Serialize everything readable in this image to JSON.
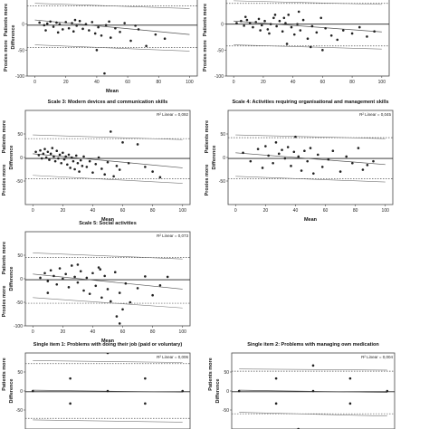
{
  "chart_data": [
    {
      "type": "scatter",
      "title": "",
      "r2_label": "",
      "xlabel": "Mean",
      "ylabel": "Difference",
      "y_pos_label": "Patients more",
      "y_neg_label": "Proxies more",
      "xlim": [
        -5,
        105
      ],
      "ylim": [
        -100,
        50
      ],
      "x_ticks": [
        0,
        20,
        40,
        60,
        80,
        100
      ],
      "y_ticks": [
        -100,
        -50,
        0
      ],
      "mean_line": -2,
      "limits": [
        35,
        -45
      ],
      "ci_upper": [
        [
          0,
          40
        ],
        [
          100,
          30
        ]
      ],
      "ci_lower": [
        [
          0,
          -40
        ],
        [
          100,
          -52
        ]
      ],
      "regression": [
        [
          0,
          8
        ],
        [
          100,
          -20
        ]
      ],
      "points": [
        [
          3,
          3
        ],
        [
          6,
          -2
        ],
        [
          8,
          1
        ],
        [
          10,
          5
        ],
        [
          12,
          -5
        ],
        [
          14,
          3
        ],
        [
          16,
          0
        ],
        [
          18,
          -10
        ],
        [
          20,
          4
        ],
        [
          22,
          -8
        ],
        [
          24,
          2
        ],
        [
          25,
          -14
        ],
        [
          27,
          -3
        ],
        [
          29,
          6
        ],
        [
          31,
          -9
        ],
        [
          33,
          0
        ],
        [
          35,
          -12
        ],
        [
          37,
          4
        ],
        [
          39,
          -18
        ],
        [
          41,
          -6
        ],
        [
          43,
          -22
        ],
        [
          46,
          -2
        ],
        [
          49,
          -26
        ],
        [
          52,
          -8
        ],
        [
          55,
          -15
        ],
        [
          58,
          2
        ],
        [
          62,
          -32
        ],
        [
          67,
          -10
        ],
        [
          72,
          -42
        ],
        [
          78,
          -20
        ],
        [
          84,
          -28
        ],
        [
          7,
          -12
        ],
        [
          15,
          -16
        ],
        [
          26,
          8
        ],
        [
          48,
          5
        ],
        [
          65,
          -3
        ],
        [
          40,
          -50
        ],
        [
          45,
          -95
        ]
      ]
    },
    {
      "type": "scatter",
      "title": "",
      "r2_label": "",
      "xlabel": "",
      "ylabel": "",
      "y_pos_label": "Patients more",
      "y_neg_label": "Proxies more",
      "xlim": [
        -5,
        105
      ],
      "ylim": [
        -100,
        50
      ],
      "x_ticks": [
        0,
        20,
        40,
        60,
        80,
        100
      ],
      "y_ticks": [
        -100,
        -50,
        0
      ],
      "mean_line": 0,
      "limits": [
        40,
        -42
      ],
      "ci_upper": [
        [
          0,
          45
        ],
        [
          100,
          38
        ]
      ],
      "ci_lower": [
        [
          0,
          -40
        ],
        [
          100,
          -48
        ]
      ],
      "regression": [
        [
          0,
          6
        ],
        [
          100,
          -15
        ]
      ],
      "points": [
        [
          2,
          2
        ],
        [
          5,
          6
        ],
        [
          7,
          -3
        ],
        [
          9,
          8
        ],
        [
          11,
          2
        ],
        [
          13,
          -6
        ],
        [
          15,
          4
        ],
        [
          17,
          10
        ],
        [
          19,
          -2
        ],
        [
          21,
          6
        ],
        [
          23,
          -10
        ],
        [
          25,
          0
        ],
        [
          27,
          12
        ],
        [
          29,
          -4
        ],
        [
          31,
          6
        ],
        [
          33,
          -14
        ],
        [
          35,
          2
        ],
        [
          37,
          18
        ],
        [
          39,
          -6
        ],
        [
          41,
          -20
        ],
        [
          43,
          0
        ],
        [
          45,
          -12
        ],
        [
          47,
          8
        ],
        [
          50,
          -28
        ],
        [
          53,
          -4
        ],
        [
          56,
          -16
        ],
        [
          59,
          12
        ],
        [
          62,
          -8
        ],
        [
          66,
          -22
        ],
        [
          70,
          -30
        ],
        [
          74,
          -12
        ],
        [
          80,
          -18
        ],
        [
          85,
          -6
        ],
        [
          90,
          -24
        ],
        [
          95,
          -14
        ],
        [
          8,
          14
        ],
        [
          18,
          -12
        ],
        [
          28,
          18
        ],
        [
          44,
          24
        ],
        [
          36,
          -38
        ],
        [
          52,
          -44
        ],
        [
          60,
          -50
        ],
        [
          34,
          12
        ],
        [
          24,
          -18
        ]
      ]
    },
    {
      "type": "scatter",
      "title": "Scale 3: Modern devices and communication skills",
      "r2_label": "R² Linear = 0,092",
      "xlabel": "Mean",
      "ylabel": "Difference",
      "y_pos_label": "Patients more",
      "y_neg_label": "Proxies more",
      "xlim": [
        -5,
        105
      ],
      "ylim": [
        -100,
        100
      ],
      "x_ticks": [
        0,
        20,
        40,
        60,
        80,
        100
      ],
      "y_ticks": [
        -50,
        0,
        50
      ],
      "mean_line": -2,
      "limits": [
        40,
        -45
      ],
      "ci_upper": [
        [
          0,
          48
        ],
        [
          100,
          38
        ]
      ],
      "ci_lower": [
        [
          0,
          -38
        ],
        [
          100,
          -55
        ]
      ],
      "regression": [
        [
          0,
          8
        ],
        [
          100,
          -22
        ]
      ],
      "points": [
        [
          2,
          12
        ],
        [
          4,
          5
        ],
        [
          5,
          15
        ],
        [
          6,
          -2
        ],
        [
          7,
          8
        ],
        [
          8,
          18
        ],
        [
          9,
          0
        ],
        [
          10,
          12
        ],
        [
          11,
          -5
        ],
        [
          12,
          8
        ],
        [
          13,
          20
        ],
        [
          14,
          2
        ],
        [
          15,
          -8
        ],
        [
          16,
          14
        ],
        [
          17,
          -2
        ],
        [
          18,
          6
        ],
        [
          19,
          -12
        ],
        [
          20,
          10
        ],
        [
          21,
          -4
        ],
        [
          22,
          2
        ],
        [
          23,
          -15
        ],
        [
          24,
          6
        ],
        [
          25,
          -22
        ],
        [
          26,
          0
        ],
        [
          27,
          -8
        ],
        [
          28,
          -25
        ],
        [
          29,
          4
        ],
        [
          30,
          -12
        ],
        [
          31,
          -30
        ],
        [
          32,
          -6
        ],
        [
          33,
          -18
        ],
        [
          34,
          2
        ],
        [
          36,
          -20
        ],
        [
          38,
          -8
        ],
        [
          40,
          -32
        ],
        [
          42,
          -14
        ],
        [
          44,
          0
        ],
        [
          46,
          -24
        ],
        [
          48,
          -36
        ],
        [
          50,
          -10
        ],
        [
          52,
          55
        ],
        [
          54,
          -40
        ],
        [
          56,
          -18
        ],
        [
          58,
          -26
        ],
        [
          60,
          32
        ],
        [
          64,
          -12
        ],
        [
          70,
          28
        ],
        [
          75,
          -20
        ],
        [
          80,
          -30
        ],
        [
          85,
          -42
        ]
      ]
    },
    {
      "type": "scatter",
      "title": "Scale 4: Activities requiring organisational and management skills",
      "r2_label": "R² Linear = 0,045",
      "xlabel": "Mean",
      "ylabel": "Difference",
      "y_pos_label": "Patients more",
      "y_neg_label": "Proxies more",
      "xlim": [
        -5,
        105
      ],
      "ylim": [
        -100,
        100
      ],
      "x_ticks": [
        0,
        20,
        40,
        60,
        80,
        100
      ],
      "y_ticks": [
        -50,
        0,
        50
      ],
      "mean_line": -2,
      "limits": [
        42,
        -45
      ],
      "ci_upper": [
        [
          0,
          48
        ],
        [
          100,
          40
        ]
      ],
      "ci_lower": [
        [
          0,
          -40
        ],
        [
          100,
          -52
        ]
      ],
      "regression": [
        [
          0,
          10
        ],
        [
          100,
          -15
        ]
      ],
      "points": [
        [
          5,
          10
        ],
        [
          10,
          -8
        ],
        [
          15,
          18
        ],
        [
          18,
          -22
        ],
        [
          20,
          24
        ],
        [
          22,
          4
        ],
        [
          25,
          -12
        ],
        [
          27,
          32
        ],
        [
          29,
          8
        ],
        [
          31,
          16
        ],
        [
          33,
          -2
        ],
        [
          35,
          22
        ],
        [
          37,
          -18
        ],
        [
          39,
          12
        ],
        [
          40,
          44
        ],
        [
          42,
          2
        ],
        [
          44,
          -28
        ],
        [
          46,
          14
        ],
        [
          48,
          -8
        ],
        [
          50,
          20
        ],
        [
          52,
          -34
        ],
        [
          55,
          6
        ],
        [
          58,
          -20
        ],
        [
          62,
          -4
        ],
        [
          65,
          14
        ],
        [
          70,
          -30
        ],
        [
          74,
          2
        ],
        [
          78,
          -12
        ],
        [
          82,
          20
        ],
        [
          85,
          -26
        ],
        [
          88,
          -16
        ],
        [
          92,
          -8
        ]
      ]
    },
    {
      "type": "scatter",
      "title": "Scale 5: Social activities",
      "r2_label": "R² Linear = 0,073",
      "xlabel": "Mean",
      "ylabel": "Difference",
      "y_pos_label": "Patients more",
      "y_neg_label": "Proxies more",
      "xlim": [
        -5,
        105
      ],
      "ylim": [
        -100,
        100
      ],
      "x_ticks": [
        0,
        20,
        40,
        60,
        80,
        100
      ],
      "y_ticks": [
        -100,
        -50,
        0,
        50
      ],
      "mean_line": -2,
      "limits": [
        45,
        -52
      ],
      "ci_upper": [
        [
          0,
          55
        ],
        [
          100,
          42
        ]
      ],
      "ci_lower": [
        [
          0,
          -40
        ],
        [
          100,
          -62
        ]
      ],
      "regression": [
        [
          0,
          10
        ],
        [
          100,
          -22
        ]
      ],
      "points": [
        [
          5,
          2
        ],
        [
          8,
          12
        ],
        [
          10,
          -5
        ],
        [
          12,
          18
        ],
        [
          14,
          6
        ],
        [
          16,
          -12
        ],
        [
          18,
          22
        ],
        [
          20,
          0
        ],
        [
          22,
          10
        ],
        [
          24,
          -18
        ],
        [
          26,
          28
        ],
        [
          28,
          4
        ],
        [
          30,
          -8
        ],
        [
          32,
          16
        ],
        [
          34,
          -25
        ],
        [
          36,
          2
        ],
        [
          38,
          -32
        ],
        [
          40,
          12
        ],
        [
          42,
          -15
        ],
        [
          44,
          24
        ],
        [
          46,
          -40
        ],
        [
          48,
          6
        ],
        [
          50,
          -22
        ],
        [
          52,
          -48
        ],
        [
          55,
          14
        ],
        [
          58,
          -30
        ],
        [
          60,
          -65
        ],
        [
          62,
          -10
        ],
        [
          65,
          -50
        ],
        [
          70,
          -20
        ],
        [
          75,
          5
        ],
        [
          80,
          -35
        ],
        [
          85,
          -14
        ],
        [
          90,
          4
        ],
        [
          56,
          -80
        ],
        [
          58,
          -95
        ],
        [
          10,
          -30
        ],
        [
          30,
          30
        ],
        [
          45,
          20
        ]
      ]
    },
    {
      "type": "scatter",
      "title": "Single item 1: Problems with doing their job (paid or voluntary)",
      "r2_label": "R² Linear = 0,006",
      "xlabel": "",
      "ylabel": "Difference",
      "y_pos_label": "Patients more",
      "y_neg_label": "",
      "xlim": [
        -5,
        105
      ],
      "ylim": [
        -100,
        100
      ],
      "x_ticks": [],
      "y_ticks": [
        -50,
        0,
        50
      ],
      "mean_line": -2,
      "limits": [
        72,
        -72
      ],
      "ci_upper": [
        [
          0,
          80
        ],
        [
          100,
          75
        ]
      ],
      "ci_lower": [
        [
          0,
          -76
        ],
        [
          100,
          -82
        ]
      ],
      "regression": [
        [
          0,
          2
        ],
        [
          100,
          -3
        ]
      ],
      "points": [
        [
          0,
          0
        ],
        [
          25,
          33
        ],
        [
          50,
          0
        ],
        [
          75,
          33
        ],
        [
          100,
          0
        ],
        [
          25,
          -33
        ],
        [
          50,
          100
        ],
        [
          75,
          -33
        ]
      ]
    },
    {
      "type": "scatter",
      "title": "Single item 2: Problems with managing own medication",
      "r2_label": "R² Linear = 0,004",
      "xlabel": "",
      "ylabel": "Difference",
      "y_pos_label": "Patients more",
      "y_neg_label": "",
      "xlim": [
        -5,
        105
      ],
      "ylim": [
        -100,
        100
      ],
      "x_ticks": [],
      "y_ticks": [
        -50,
        0,
        50
      ],
      "mean_line": -2,
      "limits": [
        52,
        -60
      ],
      "ci_upper": [
        [
          0,
          58
        ],
        [
          100,
          55
        ]
      ],
      "ci_lower": [
        [
          0,
          -56
        ],
        [
          100,
          -66
        ]
      ],
      "regression": [
        [
          0,
          2
        ],
        [
          100,
          -4
        ]
      ],
      "points": [
        [
          0,
          0
        ],
        [
          25,
          33
        ],
        [
          50,
          0
        ],
        [
          75,
          33
        ],
        [
          100,
          0
        ],
        [
          25,
          -33
        ],
        [
          50,
          67
        ],
        [
          75,
          -33
        ],
        [
          40,
          -100
        ]
      ]
    }
  ]
}
